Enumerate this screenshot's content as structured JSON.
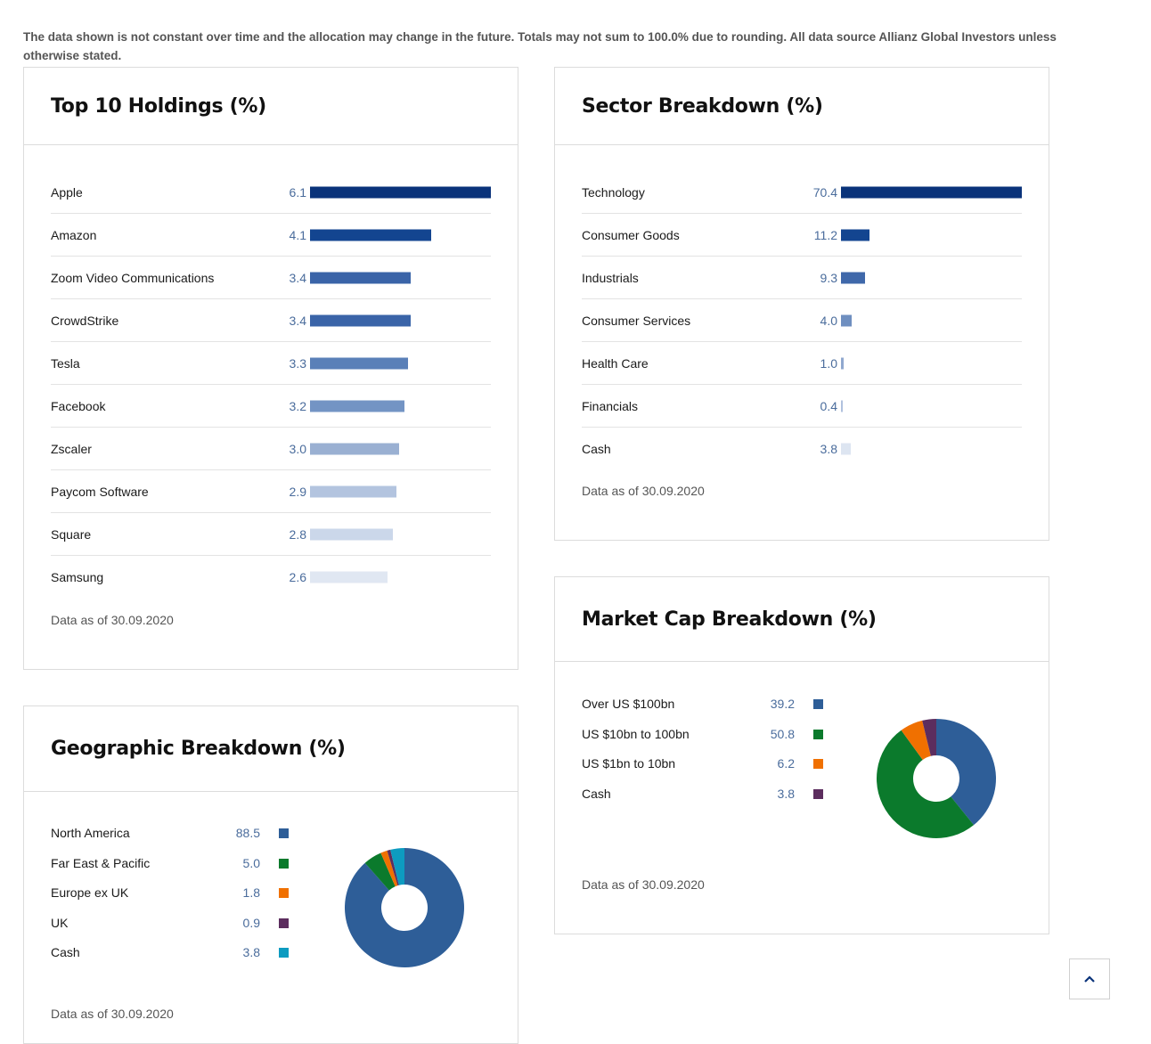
{
  "disclaimer": "The data shown is not constant over time and the allocation may change in the future. Totals may not sum to 100.0% due to rounding. All data source Allianz Global Investors unless otherwise stated.",
  "scroll_top_icon": "chevron-up-icon",
  "chart_data": [
    {
      "id": "holdings",
      "type": "bar",
      "title": "Top 10 Holdings (%)",
      "categories": [
        "Apple",
        "Amazon",
        "Zoom Video Communications",
        "CrowdStrike",
        "Tesla",
        "Facebook",
        "Zscaler",
        "Paycom Software",
        "Square",
        "Samsung"
      ],
      "values": [
        "6.1",
        "4.1",
        "3.4",
        "3.4",
        "3.3",
        "3.2",
        "3.0",
        "2.9",
        "2.8",
        "2.6"
      ],
      "colors": [
        "#0a337a",
        "#134590",
        "#3a64a8",
        "#3a64a8",
        "#5a80b8",
        "#7394c4",
        "#9ab0d2",
        "#b3c4df",
        "#cbd7ea",
        "#e0e7f2"
      ],
      "as_of": "Data as of 30.09.2020"
    },
    {
      "id": "sector",
      "type": "bar",
      "title": "Sector Breakdown (%)",
      "categories": [
        "Technology",
        "Consumer Goods",
        "Industrials",
        "Consumer Services",
        "Health Care",
        "Financials",
        "Cash"
      ],
      "values": [
        "70.4",
        "11.2",
        "9.3",
        "4.0",
        "1.0",
        "0.4",
        "3.8"
      ],
      "colors": [
        "#0a337a",
        "#134590",
        "#3f68aa",
        "#6f8fc0",
        "#90a8cf",
        "#b0c1de",
        "#dde5f1"
      ],
      "as_of": "Data as of 30.09.2020"
    },
    {
      "id": "marketcap",
      "type": "pie",
      "title": "Market Cap Breakdown (%)",
      "categories": [
        "Over US $100bn",
        "US $10bn to 100bn",
        "US $1bn to 10bn",
        "Cash"
      ],
      "values": [
        "39.2",
        "50.8",
        "6.2",
        "3.8"
      ],
      "colors": [
        "#2e5e98",
        "#0b7a2c",
        "#f07000",
        "#5c2d5e"
      ],
      "as_of": "Data as of 30.09.2020"
    },
    {
      "id": "geo",
      "type": "pie",
      "title": "Geographic Breakdown (%)",
      "categories": [
        "North America",
        "Far East & Pacific",
        "Europe ex UK",
        "UK",
        "Cash"
      ],
      "values": [
        "88.5",
        "5.0",
        "1.8",
        "0.9",
        "3.8"
      ],
      "colors": [
        "#2e5e98",
        "#0b7a2c",
        "#f07000",
        "#5c2d5e",
        "#0d9bc0"
      ],
      "as_of": "Data as of 30.09.2020"
    }
  ]
}
